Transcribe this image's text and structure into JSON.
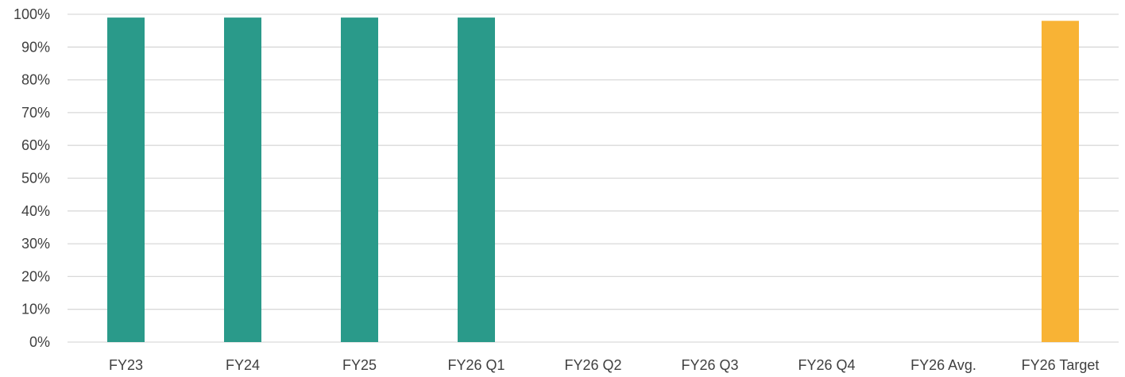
{
  "chart_data": {
    "type": "bar",
    "categories": [
      "FY23",
      "FY24",
      "FY25",
      "FY26 Q1",
      "FY26 Q2",
      "FY26 Q3",
      "FY26 Q4",
      "FY26 Avg.",
      "FY26 Target"
    ],
    "values": [
      99,
      99,
      99,
      99,
      null,
      null,
      null,
      null,
      98
    ],
    "bar_colors": [
      "#2a9a8a",
      "#2a9a8a",
      "#2a9a8a",
      "#2a9a8a",
      "#2a9a8a",
      "#2a9a8a",
      "#2a9a8a",
      "#2a9a8a",
      "#f8b335"
    ],
    "y_ticks": [
      "0%",
      "10%",
      "20%",
      "30%",
      "40%",
      "50%",
      "60%",
      "70%",
      "80%",
      "90%",
      "100%"
    ],
    "ylim": [
      0,
      100
    ],
    "y_unit": "%",
    "grid": true,
    "legend": "none",
    "title": "",
    "xlabel": "",
    "ylabel": ""
  }
}
